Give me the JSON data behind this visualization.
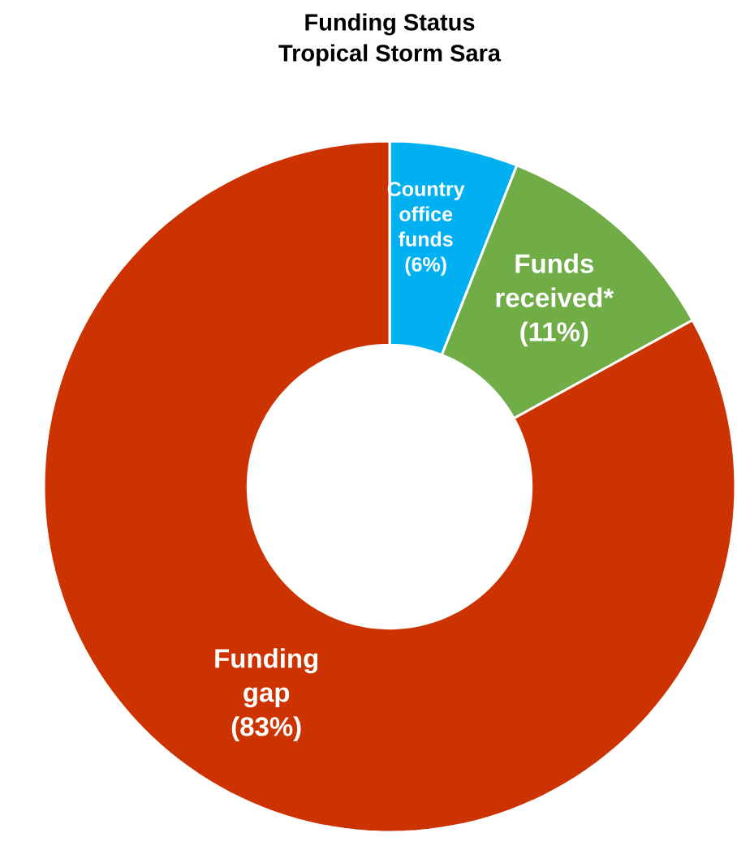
{
  "chart_data": {
    "type": "donut",
    "title": "Funding Status\nTropical Storm Sara",
    "categories": [
      "Country office funds",
      "Funds received*",
      "Funding gap"
    ],
    "values": [
      6,
      11,
      83
    ],
    "value_labels": [
      "(6%)",
      "(11%)",
      "(83%)"
    ],
    "colors": [
      "#00b0f0",
      "#70ad47",
      "#cc3300"
    ]
  }
}
